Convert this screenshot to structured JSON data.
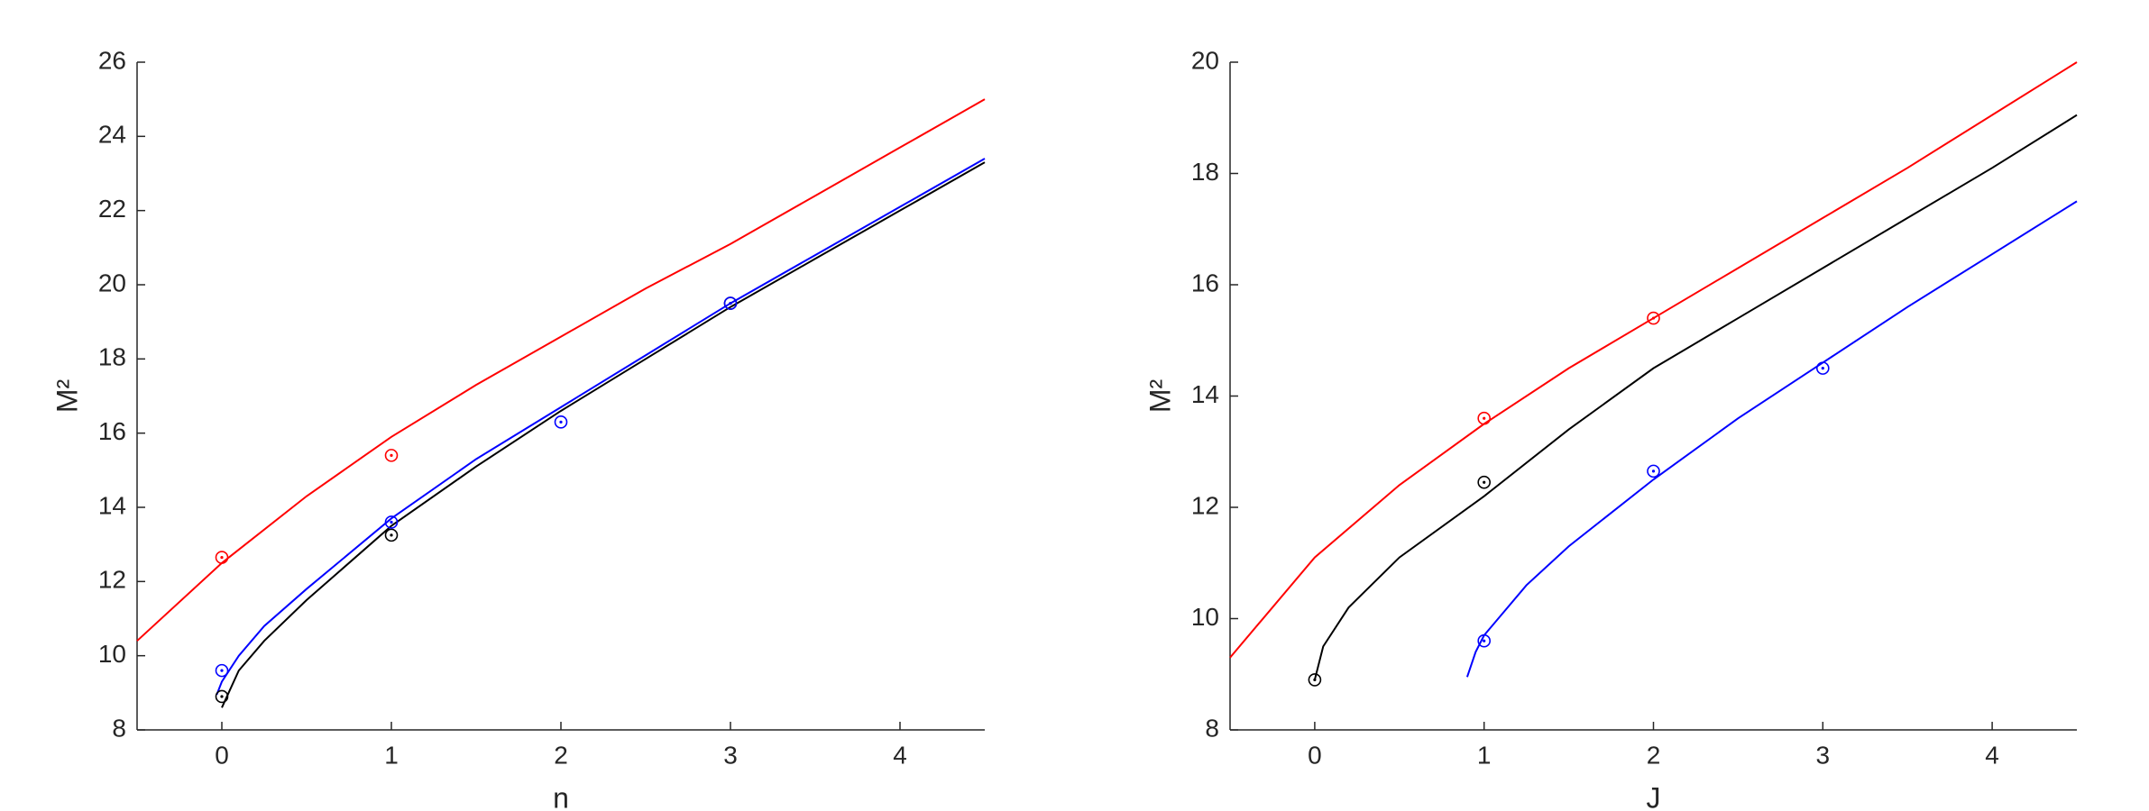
{
  "chart_data": [
    {
      "type": "line",
      "xlabel": "n",
      "ylabel": "M²",
      "xlim": [
        -0.5,
        4.5
      ],
      "xticks": [
        0,
        1,
        2,
        3,
        4
      ],
      "ylim": [
        8,
        26
      ],
      "yticks": [
        8,
        10,
        12,
        14,
        16,
        18,
        20,
        22,
        24,
        26
      ],
      "series": [
        {
          "style": "line",
          "color": "#ff0000",
          "x": [
            -0.5,
            0,
            0.5,
            1,
            1.5,
            2,
            2.5,
            3,
            3.5,
            4,
            4.5
          ],
          "values": [
            10.4,
            12.5,
            14.3,
            15.9,
            17.3,
            18.6,
            19.9,
            21.1,
            22.4,
            23.7,
            25.0
          ]
        },
        {
          "style": "line",
          "color": "#0000ff",
          "x": [
            -0.03,
            0,
            0.1,
            0.25,
            0.5,
            1,
            1.5,
            2,
            2.5,
            3,
            3.5,
            4,
            4.5
          ],
          "values": [
            8.95,
            9.3,
            10.0,
            10.8,
            11.8,
            13.7,
            15.3,
            16.7,
            18.1,
            19.5,
            20.8,
            22.1,
            23.4
          ]
        },
        {
          "style": "line",
          "color": "#000000",
          "x": [
            0,
            0.1,
            0.25,
            0.5,
            1,
            1.5,
            2,
            2.5,
            3,
            3.5,
            4,
            4.5
          ],
          "values": [
            8.6,
            9.6,
            10.4,
            11.5,
            13.5,
            15.1,
            16.6,
            18.0,
            19.4,
            20.7,
            22.0,
            23.3
          ]
        },
        {
          "style": "marker",
          "color": "#ff0000",
          "x": [
            0,
            1
          ],
          "values": [
            12.65,
            15.4
          ]
        },
        {
          "style": "marker",
          "color": "#000000",
          "x": [
            0,
            1,
            3
          ],
          "values": [
            8.9,
            13.25,
            19.5
          ]
        },
        {
          "style": "marker",
          "color": "#0000ff",
          "x": [
            0,
            1,
            2,
            3
          ],
          "values": [
            9.6,
            13.6,
            16.3,
            19.5
          ]
        }
      ]
    },
    {
      "type": "line",
      "xlabel": "J",
      "ylabel": "M²",
      "xlim": [
        -0.5,
        4.5
      ],
      "xticks": [
        0,
        1,
        2,
        3,
        4
      ],
      "ylim": [
        8,
        20
      ],
      "yticks": [
        8,
        10,
        12,
        14,
        16,
        18,
        20
      ],
      "series": [
        {
          "style": "line",
          "color": "#ff0000",
          "x": [
            -0.5,
            0,
            0.5,
            1,
            1.5,
            2,
            2.5,
            3,
            3.5,
            4,
            4.5
          ],
          "values": [
            9.3,
            11.1,
            12.4,
            13.5,
            14.5,
            15.4,
            16.3,
            17.2,
            18.1,
            19.05,
            20.0
          ]
        },
        {
          "style": "line",
          "color": "#000000",
          "x": [
            0,
            0.05,
            0.2,
            0.5,
            1,
            1.5,
            2,
            2.5,
            3,
            3.5,
            4,
            4.5
          ],
          "values": [
            8.9,
            9.5,
            10.2,
            11.1,
            12.2,
            13.4,
            14.5,
            15.4,
            16.3,
            17.2,
            18.1,
            19.05
          ]
        },
        {
          "style": "line",
          "color": "#0000ff",
          "x": [
            0.9,
            0.95,
            1,
            1.25,
            1.5,
            2,
            2.5,
            3,
            3.5,
            4,
            4.5
          ],
          "values": [
            8.95,
            9.4,
            9.7,
            10.6,
            11.3,
            12.5,
            13.6,
            14.6,
            15.6,
            16.55,
            17.5
          ]
        },
        {
          "style": "marker",
          "color": "#ff0000",
          "x": [
            1,
            2
          ],
          "values": [
            13.6,
            15.4
          ]
        },
        {
          "style": "marker",
          "color": "#000000",
          "x": [
            0,
            1
          ],
          "values": [
            8.9,
            12.45
          ]
        },
        {
          "style": "marker",
          "color": "#0000ff",
          "x": [
            1,
            2,
            3
          ],
          "values": [
            9.6,
            12.65,
            14.5
          ]
        }
      ]
    }
  ]
}
